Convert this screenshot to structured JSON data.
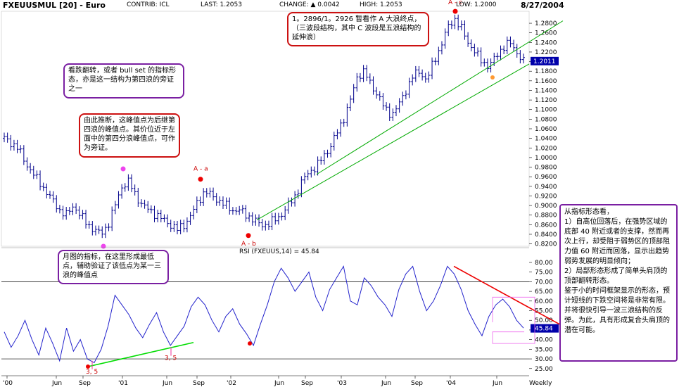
{
  "header": {
    "symbol": "FXEUUSMUL [20] - Euro",
    "contrib": "CONTRIB: ICL",
    "last": "LAST: 1.2053",
    "change": "CHANGE: ▲ 0.0042",
    "high": "HIGH: 1.2053",
    "low": "LOW: 1.2000",
    "date": "8/27/2004"
  },
  "annotations": {
    "wave_a_end": "1。2896/1。2926 暂看作 A 大浪终点，（三波段结构，其中 C 波段是五浪结构的延伸浪）",
    "reversal": "看跌翻转，或者 bull set 的指标形态，亦是这一结构为第四浪的旁证之一",
    "inference": "由此推断，这峰值点为后继第四浪的峰值点。其价位近于左面中的第四分浪峰值点，可作为旁证。",
    "monthly": "月图的指标，在这里形成最低点，辅助验证了该低点为某一三浪的峰值点"
  },
  "right_panel": {
    "lines": [
      "从指标形态看，",
      "1）自高位回落后，在强势区域的底部 40 附近或者的支撑，然而再次上行，却受阻于弱势区的顶部阻力值 60 附近而回落，显示出趋势弱势发展的明显倾向；",
      "2）局部形态形成了简单头肩顶的顶部翻转形态。",
      "鉴于小的时间框架显示的形态，预计短线的下跌空间将是非常有限。并将很快引导一波三浪结构的反弹。为此，具有形成复合头肩顶的潜在可能。"
    ]
  },
  "chart_data": [
    {
      "type": "ohlc",
      "title": "",
      "ylim": [
        0.815,
        1.305
      ],
      "yticks": [
        "1.2800",
        "1.2600",
        "1.2400",
        "1.2200",
        "1.2000",
        "1.1800",
        "1.1600",
        "1.1400",
        "1.1200",
        "1.1000",
        "1.0800",
        "1.0600",
        "1.0400",
        "1.0200",
        "1.0000",
        "0.9800",
        "0.9600",
        "0.9400",
        "0.9200",
        "0.9000",
        "0.8800",
        "0.8600",
        "0.8400",
        "0.8200"
      ],
      "last_value_label": "1.2011",
      "series": [
        {
          "values": [
            1.04,
            1.03,
            1.02,
            0.99,
            0.97,
            0.95,
            0.93,
            0.91,
            0.89,
            0.88,
            0.9,
            0.88,
            0.86,
            0.85,
            0.84,
            0.86,
            0.9,
            0.94,
            0.95,
            0.92,
            0.9,
            0.89,
            0.88,
            0.87,
            0.86,
            0.85,
            0.86,
            0.88,
            0.91,
            0.93,
            0.92,
            0.91,
            0.9,
            0.89,
            0.89,
            0.88,
            0.87,
            0.86,
            0.86,
            0.87,
            0.88,
            0.9,
            0.92,
            0.95,
            0.97,
            0.98,
            1.0,
            1.02,
            1.05,
            1.08,
            1.12,
            1.17,
            1.18,
            1.15,
            1.13,
            1.1,
            1.09,
            1.11,
            1.14,
            1.17,
            1.18,
            1.16,
            1.2,
            1.23,
            1.27,
            1.29,
            1.27,
            1.24,
            1.22,
            1.2,
            1.19,
            1.21,
            1.23,
            1.24,
            1.22,
            1.2
          ]
        }
      ],
      "points": [
        {
          "label": "A - a",
          "y": 0.946
        },
        {
          "label": "A - b",
          "y": 0.852
        },
        {
          "label": "A - c",
          "y": 1.296
        }
      ],
      "trendlines": [
        {
          "x": [
            "2002-05",
            "2004-07"
          ],
          "y": [
            0.87,
            1.165
          ]
        },
        {
          "x": [
            "2002-09",
            "2004-08"
          ],
          "y": [
            0.96,
            1.19
          ]
        }
      ]
    },
    {
      "type": "line",
      "title": "RSI (FXEUUS,14) = 45.84",
      "ylim": [
        22,
        84
      ],
      "yticks": [
        "80.00",
        "75.00",
        "70.00",
        "65.00",
        "60.00",
        "55.00",
        "50.00",
        "45.00",
        "40.00",
        "35.00",
        "30.00",
        "25.00"
      ],
      "last_value_label": "45.84",
      "series": [
        {
          "values": [
            44,
            36,
            42,
            50,
            40,
            32,
            46,
            38,
            29,
            46,
            34,
            40,
            30,
            28,
            35,
            47,
            63,
            58,
            53,
            46,
            41,
            48,
            54,
            44,
            37,
            42,
            47,
            57,
            62,
            58,
            50,
            44,
            52,
            56,
            48,
            43,
            37,
            48,
            58,
            70,
            77,
            72,
            65,
            70,
            75,
            62,
            55,
            66,
            72,
            78,
            60,
            58,
            72,
            68,
            62,
            58,
            52,
            66,
            74,
            78,
            65,
            55,
            60,
            68,
            78,
            74,
            66,
            55,
            48,
            42,
            52,
            58,
            61,
            57,
            50,
            46
          ]
        }
      ],
      "points": [
        {
          "label": "3, 5",
          "y": 27
        },
        {
          "label": "3, 5",
          "y": 34
        },
        {
          "label": "",
          "y": 38
        }
      ],
      "levels": [
        70,
        30
      ]
    }
  ],
  "x_axis": {
    "ticks": [
      "'00",
      "Jun",
      "Sep",
      "'01",
      "Jun",
      "Sep",
      "'02",
      "Jun",
      "Sep",
      "'03",
      "Jun",
      "Sep",
      "'04",
      "Jun"
    ],
    "label": "Weekly"
  }
}
